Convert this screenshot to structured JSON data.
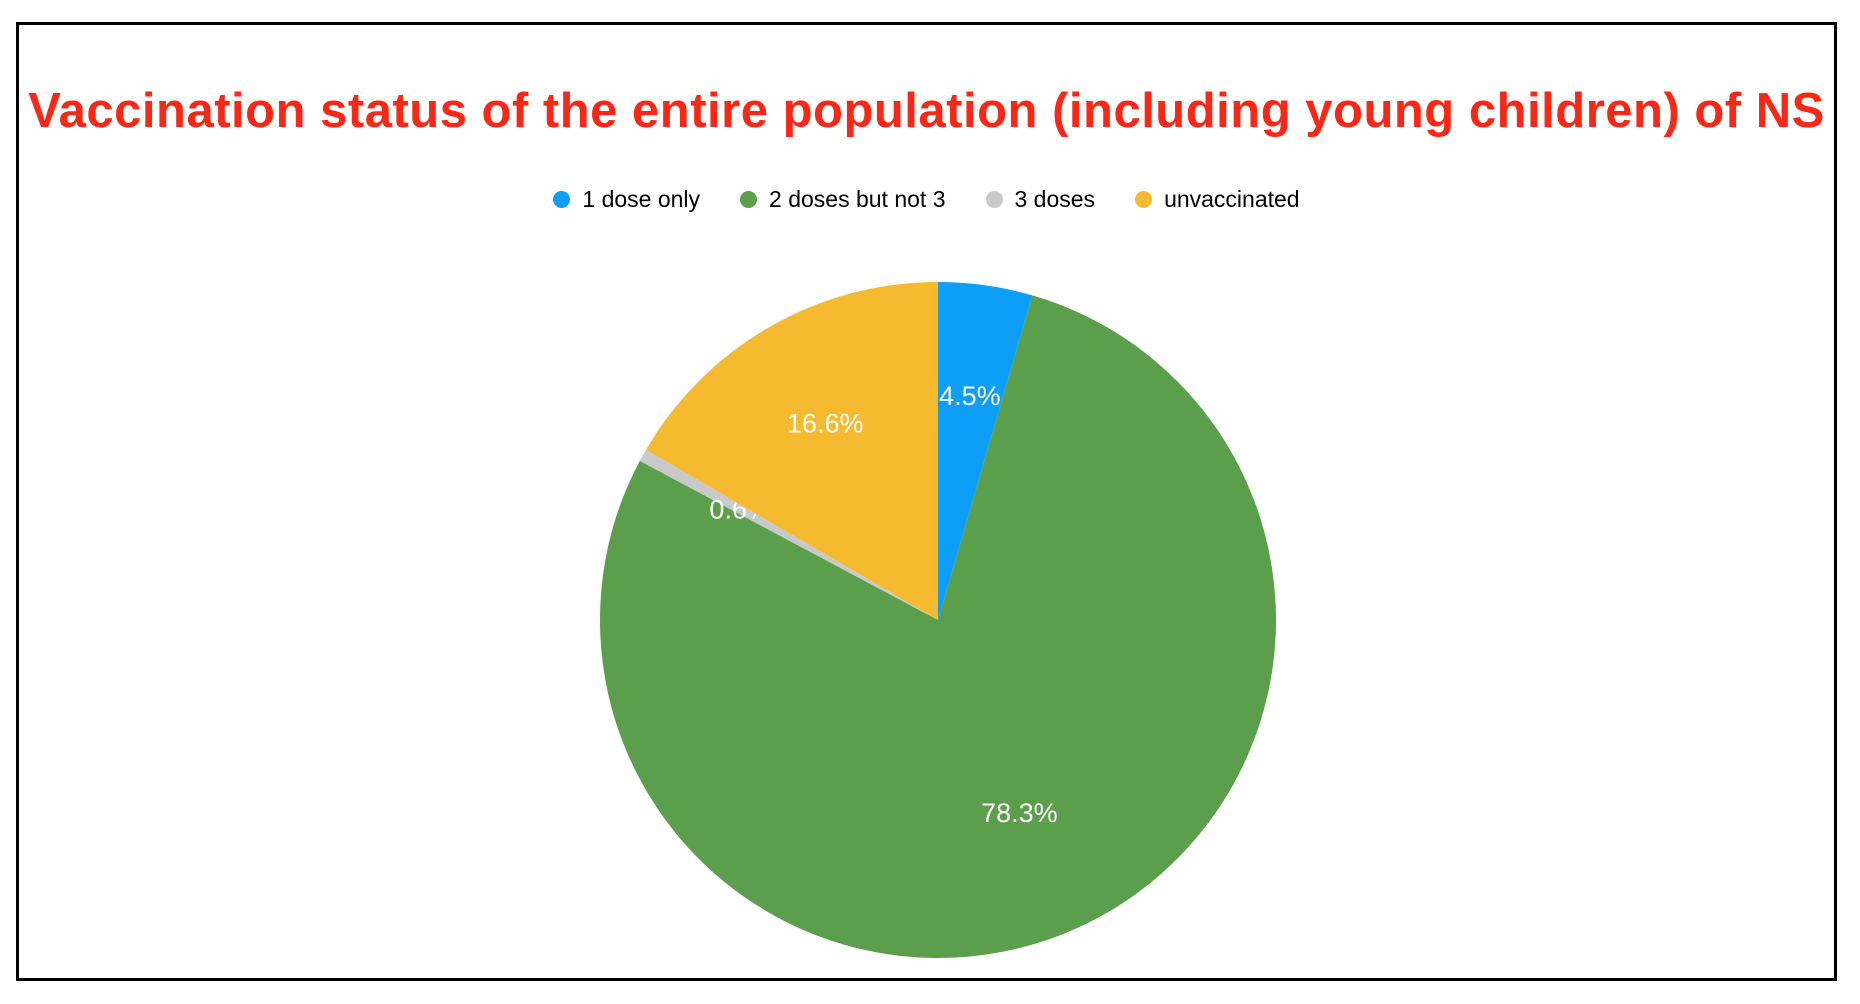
{
  "chart_data": {
    "type": "pie",
    "title": "Vaccination status of the entire population (including young children) of NS",
    "title_color": "#fb2716",
    "legend_position": "top",
    "start_angle_deg": 0,
    "direction": "clockwise",
    "slice_label_color": "#ffffff",
    "slices": [
      {
        "label": "1 dose only",
        "value": 4.5,
        "display": "4.5%",
        "color": "#0d9ef7"
      },
      {
        "label": "2 doses but not 3",
        "value": 78.3,
        "display": "78.3%",
        "color": "#5b9e4c"
      },
      {
        "label": "3 doses",
        "value": 0.6,
        "display": "0.6%",
        "color": "#c9c9c9"
      },
      {
        "label": "unvaccinated",
        "value": 16.6,
        "display": "16.6%",
        "color": "#f6ba30"
      }
    ]
  }
}
